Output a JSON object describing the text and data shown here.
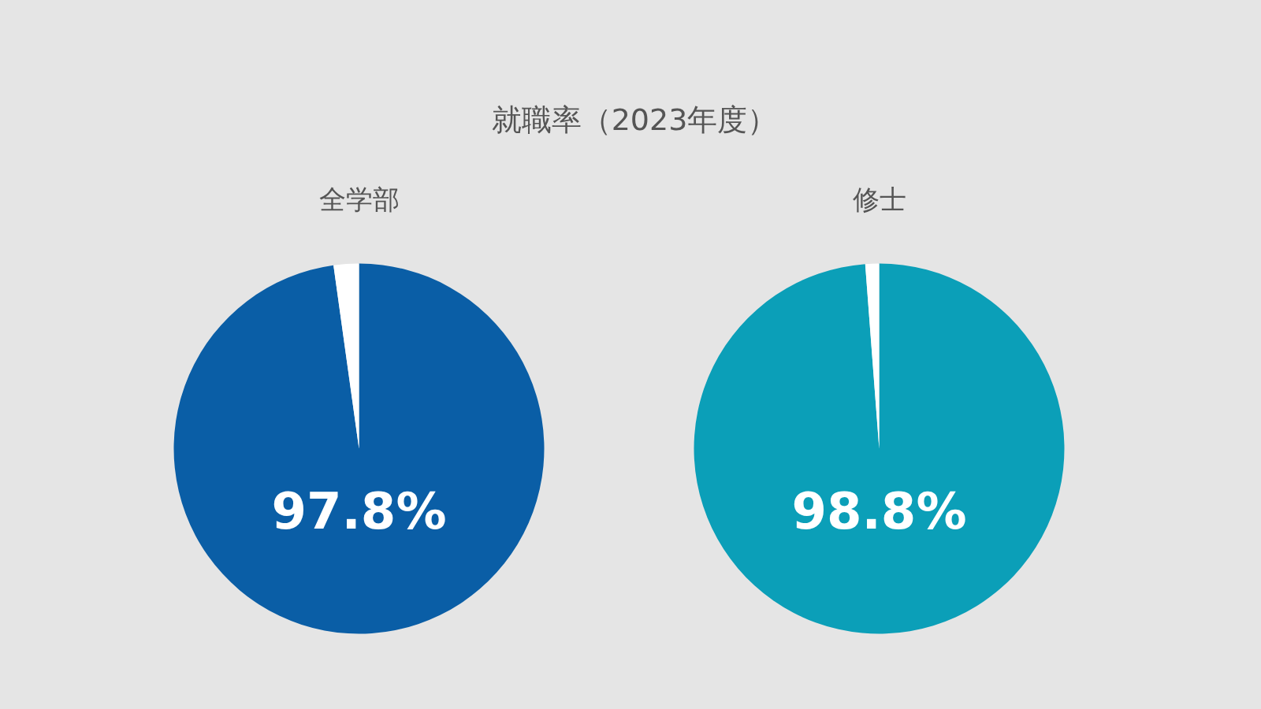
{
  "chart_data": [
    {
      "type": "pie",
      "title": "就職率（2023年度）",
      "subtitle": "全学部",
      "categories": [
        null,
        null
      ],
      "values": [
        97.8,
        2.2
      ],
      "colors": [
        "#0a5ea6",
        "#ffffff"
      ],
      "value_labels": [
        "97.8%",
        null
      ]
    },
    {
      "type": "pie",
      "subtitle": "修士",
      "categories": [
        null,
        null
      ],
      "values": [
        98.8,
        1.2
      ],
      "colors": [
        "#0b9fb8",
        "#ffffff"
      ],
      "value_labels": [
        "98.8%",
        null
      ]
    }
  ]
}
